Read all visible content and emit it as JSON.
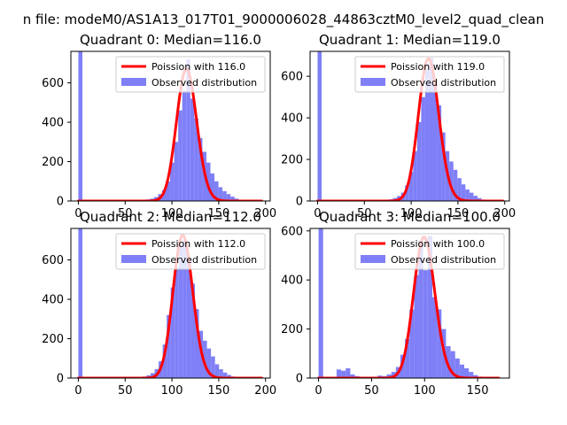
{
  "figure": {
    "suptitle": "n file: modeM0/AS1A13_017T01_9000006028_44863cztM0_level2_quad_clean"
  },
  "colors": {
    "histogram": "#7f7ff7",
    "poisson": "#ff0000",
    "axes": "#000000",
    "background": "#ffffff"
  },
  "chart_data": [
    {
      "type": "bar",
      "title": "Quadrant 0: Median=116.0",
      "median": 116.0,
      "xlim": [
        -8,
        205
      ],
      "ylim": [
        0,
        760
      ],
      "xticks": [
        0,
        50,
        100,
        150,
        200
      ],
      "yticks": [
        0,
        200,
        400,
        600
      ],
      "legend_position": "top-right",
      "legend": [
        "Poission with 116.0",
        "Observed distribution"
      ],
      "histogram": {
        "name": "Observed distribution",
        "bin_width": 4.3,
        "bins": [
          {
            "x": 0,
            "y": 760
          },
          {
            "x": 68,
            "y": 5
          },
          {
            "x": 72.3,
            "y": 8
          },
          {
            "x": 76.6,
            "y": 12
          },
          {
            "x": 80.9,
            "y": 20
          },
          {
            "x": 85.2,
            "y": 35
          },
          {
            "x": 89.5,
            "y": 55
          },
          {
            "x": 93.8,
            "y": 100
          },
          {
            "x": 98.1,
            "y": 195
          },
          {
            "x": 102.4,
            "y": 300
          },
          {
            "x": 106.7,
            "y": 460
          },
          {
            "x": 111,
            "y": 560
          },
          {
            "x": 115.3,
            "y": 720
          },
          {
            "x": 119.6,
            "y": 520
          },
          {
            "x": 123.9,
            "y": 420
          },
          {
            "x": 128.2,
            "y": 320
          },
          {
            "x": 132.5,
            "y": 250
          },
          {
            "x": 136.8,
            "y": 195
          },
          {
            "x": 141.1,
            "y": 140
          },
          {
            "x": 145.4,
            "y": 100
          },
          {
            "x": 149.7,
            "y": 70
          },
          {
            "x": 154,
            "y": 50
          },
          {
            "x": 158.3,
            "y": 35
          },
          {
            "x": 162.6,
            "y": 22
          },
          {
            "x": 166.9,
            "y": 12
          },
          {
            "x": 171.2,
            "y": 6
          }
        ]
      },
      "poisson": {
        "name": "Poission with 116.0",
        "lambda": 116.0,
        "scale": 670,
        "x_range": [
          0,
          196
        ]
      }
    },
    {
      "type": "bar",
      "title": "Quadrant 1: Median=119.0",
      "median": 119.0,
      "xlim": [
        -8,
        205
      ],
      "ylim": [
        0,
        720
      ],
      "xticks": [
        0,
        50,
        100,
        150,
        200
      ],
      "yticks": [
        0,
        200,
        400,
        600
      ],
      "legend_position": "top-right",
      "legend": [
        "Poission with 119.0",
        "Observed distribution"
      ],
      "histogram": {
        "name": "Observed distribution",
        "bin_width": 4.3,
        "bins": [
          {
            "x": 0,
            "y": 720
          },
          {
            "x": 72,
            "y": 5
          },
          {
            "x": 76.3,
            "y": 8
          },
          {
            "x": 80.6,
            "y": 14
          },
          {
            "x": 84.9,
            "y": 24
          },
          {
            "x": 89.2,
            "y": 40
          },
          {
            "x": 93.5,
            "y": 75
          },
          {
            "x": 97.8,
            "y": 140
          },
          {
            "x": 102.1,
            "y": 240
          },
          {
            "x": 106.4,
            "y": 380
          },
          {
            "x": 110.7,
            "y": 500
          },
          {
            "x": 115,
            "y": 630
          },
          {
            "x": 119.3,
            "y": 690
          },
          {
            "x": 123.6,
            "y": 560
          },
          {
            "x": 127.9,
            "y": 460
          },
          {
            "x": 132.2,
            "y": 330
          },
          {
            "x": 136.5,
            "y": 240
          },
          {
            "x": 140.8,
            "y": 190
          },
          {
            "x": 145.1,
            "y": 150
          },
          {
            "x": 149.4,
            "y": 110
          },
          {
            "x": 153.7,
            "y": 80
          },
          {
            "x": 158,
            "y": 55
          },
          {
            "x": 162.3,
            "y": 40
          },
          {
            "x": 166.6,
            "y": 25
          },
          {
            "x": 170.9,
            "y": 14
          },
          {
            "x": 175.2,
            "y": 7
          }
        ]
      },
      "poisson": {
        "name": "Poission with 119.0",
        "lambda": 119.0,
        "scale": 685,
        "x_range": [
          0,
          198
        ]
      }
    },
    {
      "type": "bar",
      "title": "Quadrant 2: Median=112.0",
      "median": 112.0,
      "xlim": [
        -8,
        205
      ],
      "ylim": [
        0,
        760
      ],
      "xticks": [
        0,
        50,
        100,
        150,
        200
      ],
      "yticks": [
        0,
        200,
        400,
        600
      ],
      "legend_position": "top-right",
      "legend": [
        "Poission with 112.0",
        "Observed distribution"
      ],
      "histogram": {
        "name": "Observed distribution",
        "bin_width": 4.3,
        "bins": [
          {
            "x": 0,
            "y": 760
          },
          {
            "x": 60,
            "y": 3
          },
          {
            "x": 64.3,
            "y": 5
          },
          {
            "x": 68.6,
            "y": 8
          },
          {
            "x": 72.9,
            "y": 14
          },
          {
            "x": 77.2,
            "y": 25
          },
          {
            "x": 81.5,
            "y": 45
          },
          {
            "x": 85.8,
            "y": 85
          },
          {
            "x": 90.1,
            "y": 170
          },
          {
            "x": 94.4,
            "y": 320
          },
          {
            "x": 98.7,
            "y": 460
          },
          {
            "x": 103,
            "y": 560
          },
          {
            "x": 107.3,
            "y": 670
          },
          {
            "x": 111.6,
            "y": 700
          },
          {
            "x": 115.9,
            "y": 610
          },
          {
            "x": 120.2,
            "y": 480
          },
          {
            "x": 124.5,
            "y": 350
          },
          {
            "x": 128.8,
            "y": 240
          },
          {
            "x": 133.1,
            "y": 190
          },
          {
            "x": 137.4,
            "y": 150
          },
          {
            "x": 141.7,
            "y": 110
          },
          {
            "x": 146,
            "y": 70
          },
          {
            "x": 150.3,
            "y": 45
          },
          {
            "x": 154.6,
            "y": 28
          },
          {
            "x": 158.9,
            "y": 16
          },
          {
            "x": 163.2,
            "y": 8
          }
        ]
      },
      "poisson": {
        "name": "Poission with 112.0",
        "lambda": 112.0,
        "scale": 725,
        "x_range": [
          0,
          196
        ]
      }
    },
    {
      "type": "bar",
      "title": "Quadrant 3: Median=100.0",
      "median": 100.0,
      "xlim": [
        -8,
        180
      ],
      "ylim": [
        0,
        610
      ],
      "xticks": [
        0,
        50,
        100,
        150
      ],
      "yticks": [
        0,
        200,
        400,
        600
      ],
      "legend_position": "top-right",
      "legend": [
        "Poission with 100.0",
        "Observed distribution"
      ],
      "histogram": {
        "name": "Observed distribution",
        "bin_width": 4.3,
        "bins": [
          {
            "x": 0,
            "y": 610
          },
          {
            "x": 17,
            "y": 35
          },
          {
            "x": 21.3,
            "y": 30
          },
          {
            "x": 25.6,
            "y": 40
          },
          {
            "x": 29.9,
            "y": 15
          },
          {
            "x": 34.2,
            "y": 8
          },
          {
            "x": 38.5,
            "y": 5
          },
          {
            "x": 42.8,
            "y": 5
          },
          {
            "x": 47.1,
            "y": 4
          },
          {
            "x": 51.4,
            "y": 4
          },
          {
            "x": 55.7,
            "y": 10
          },
          {
            "x": 60,
            "y": 8
          },
          {
            "x": 64.3,
            "y": 15
          },
          {
            "x": 68.6,
            "y": 25
          },
          {
            "x": 72.9,
            "y": 45
          },
          {
            "x": 77.2,
            "y": 95
          },
          {
            "x": 81.5,
            "y": 160
          },
          {
            "x": 85.8,
            "y": 280
          },
          {
            "x": 90.1,
            "y": 420
          },
          {
            "x": 94.4,
            "y": 560
          },
          {
            "x": 98.7,
            "y": 440
          },
          {
            "x": 103,
            "y": 580
          },
          {
            "x": 107.3,
            "y": 330
          },
          {
            "x": 111.6,
            "y": 280
          },
          {
            "x": 115.9,
            "y": 200
          },
          {
            "x": 120.2,
            "y": 130
          },
          {
            "x": 124.5,
            "y": 110
          },
          {
            "x": 128.8,
            "y": 80
          },
          {
            "x": 133.1,
            "y": 55
          },
          {
            "x": 137.4,
            "y": 40
          },
          {
            "x": 141.7,
            "y": 25
          },
          {
            "x": 146,
            "y": 12
          },
          {
            "x": 150.3,
            "y": 6
          }
        ]
      },
      "poisson": {
        "name": "Poission with 100.0",
        "lambda": 100.0,
        "scale": 575,
        "x_range": [
          0,
          170
        ]
      }
    }
  ]
}
